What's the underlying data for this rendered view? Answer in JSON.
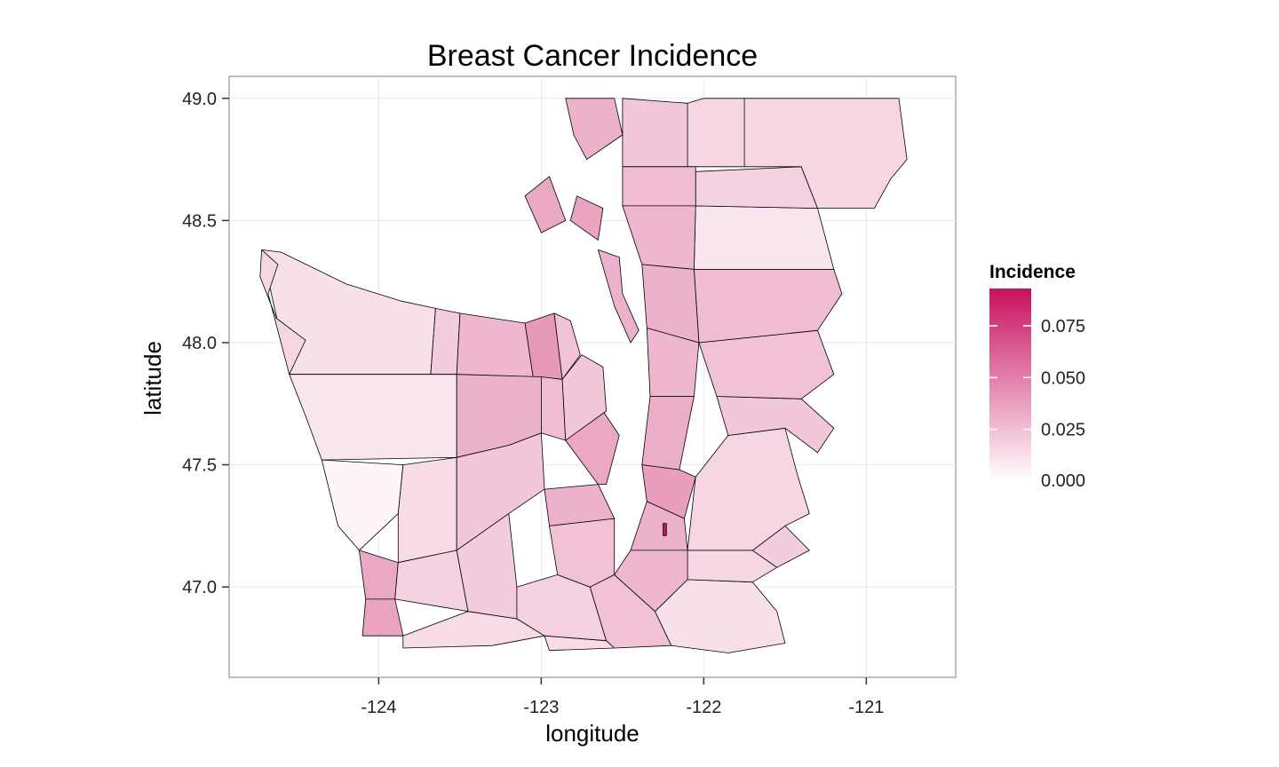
{
  "chart_data": {
    "type": "choropleth",
    "title": "Breast Cancer Incidence",
    "xlabel": "longitude",
    "ylabel": "latitude",
    "xlim": [
      -124.92,
      -120.45
    ],
    "ylim": [
      46.63,
      49.09
    ],
    "x_ticks": [
      -124,
      -123,
      -122,
      -121
    ],
    "x_tick_labels": [
      "-124",
      "-123",
      "-122",
      "-121"
    ],
    "y_ticks": [
      47.0,
      47.5,
      48.0,
      48.5,
      49.0
    ],
    "y_tick_labels": [
      "47.0",
      "47.5",
      "48.0",
      "48.5",
      "49.0"
    ],
    "grid": true,
    "legend": {
      "title": "Incidence",
      "placement": "right",
      "range": [
        0,
        0.093
      ],
      "ticks": [
        0.0,
        0.025,
        0.05,
        0.075
      ],
      "tick_labels": [
        "0.000",
        "0.025",
        "0.050",
        "0.075"
      ],
      "color_low": "#ffffff",
      "color_high": "#c8115f"
    },
    "regions": [
      {
        "v": 0.012,
        "pts": [
          [
            -123.86,
            48.17
          ],
          [
            -123.65,
            48.14
          ],
          [
            -123.68,
            47.87
          ],
          [
            -124.55,
            47.87
          ],
          [
            -124.72,
            48.38
          ],
          [
            -124.6,
            48.37
          ],
          [
            -124.2,
            48.24
          ]
        ]
      },
      {
        "v": 0.016,
        "pts": [
          [
            -124.72,
            48.38
          ],
          [
            -124.62,
            48.32
          ],
          [
            -124.68,
            48.2
          ],
          [
            -124.55,
            47.87
          ],
          [
            -124.45,
            48.01
          ],
          [
            -124.63,
            48.1
          ],
          [
            -124.73,
            48.27
          ]
        ]
      },
      {
        "v": 0.02,
        "pts": [
          [
            -123.65,
            48.14
          ],
          [
            -123.5,
            48.12
          ],
          [
            -123.52,
            47.87
          ],
          [
            -123.68,
            47.87
          ]
        ]
      },
      {
        "v": 0.028,
        "pts": [
          [
            -123.5,
            48.12
          ],
          [
            -123.1,
            48.08
          ],
          [
            -123.05,
            47.86
          ],
          [
            -123.52,
            47.87
          ]
        ]
      },
      {
        "v": 0.04,
        "pts": [
          [
            -123.1,
            48.08
          ],
          [
            -122.92,
            48.12
          ],
          [
            -122.87,
            47.85
          ],
          [
            -123.05,
            47.86
          ]
        ]
      },
      {
        "v": 0.024,
        "pts": [
          [
            -122.92,
            48.12
          ],
          [
            -122.82,
            48.09
          ],
          [
            -122.76,
            47.95
          ],
          [
            -122.87,
            47.85
          ]
        ]
      },
      {
        "v": 0.01,
        "pts": [
          [
            -124.55,
            47.87
          ],
          [
            -123.52,
            47.87
          ],
          [
            -123.52,
            47.53
          ],
          [
            -124.35,
            47.52
          ],
          [
            -124.45,
            47.7
          ]
        ]
      },
      {
        "v": 0.03,
        "pts": [
          [
            -123.52,
            47.87
          ],
          [
            -123.0,
            47.86
          ],
          [
            -123.0,
            47.63
          ],
          [
            -123.2,
            47.58
          ],
          [
            -123.52,
            47.53
          ]
        ]
      },
      {
        "v": 0.026,
        "pts": [
          [
            -123.0,
            47.86
          ],
          [
            -122.87,
            47.85
          ],
          [
            -122.85,
            47.6
          ],
          [
            -123.0,
            47.63
          ]
        ]
      },
      {
        "v": 0.004,
        "pts": [
          [
            -124.35,
            47.52
          ],
          [
            -123.85,
            47.5
          ],
          [
            -123.88,
            47.3
          ],
          [
            -124.12,
            47.15
          ],
          [
            -124.25,
            47.25
          ]
        ]
      },
      {
        "v": 0.014,
        "pts": [
          [
            -123.85,
            47.5
          ],
          [
            -123.52,
            47.53
          ],
          [
            -123.52,
            47.15
          ],
          [
            -123.88,
            47.1
          ],
          [
            -123.88,
            47.3
          ]
        ]
      },
      {
        "v": 0.022,
        "pts": [
          [
            -123.52,
            47.53
          ],
          [
            -123.2,
            47.58
          ],
          [
            -123.0,
            47.63
          ],
          [
            -122.98,
            47.4
          ],
          [
            -123.2,
            47.3
          ],
          [
            -123.52,
            47.15
          ]
        ]
      },
      {
        "v": 0.034,
        "pts": [
          [
            -124.12,
            47.15
          ],
          [
            -123.88,
            47.1
          ],
          [
            -123.9,
            46.95
          ],
          [
            -124.08,
            46.95
          ]
        ]
      },
      {
        "v": 0.018,
        "pts": [
          [
            -123.88,
            47.1
          ],
          [
            -123.52,
            47.15
          ],
          [
            -123.45,
            46.9
          ],
          [
            -123.9,
            46.95
          ]
        ]
      },
      {
        "v": 0.036,
        "pts": [
          [
            -124.08,
            46.95
          ],
          [
            -123.9,
            46.95
          ],
          [
            -123.85,
            46.8
          ],
          [
            -124.1,
            46.8
          ]
        ]
      },
      {
        "v": 0.014,
        "pts": [
          [
            -123.85,
            46.8
          ],
          [
            -123.45,
            46.9
          ],
          [
            -123.15,
            46.87
          ],
          [
            -122.98,
            46.8
          ],
          [
            -123.3,
            46.76
          ],
          [
            -123.85,
            46.75
          ]
        ]
      },
      {
        "v": 0.02,
        "pts": [
          [
            -123.45,
            46.9
          ],
          [
            -123.52,
            47.15
          ],
          [
            -123.2,
            47.3
          ],
          [
            -123.15,
            47.0
          ],
          [
            -123.15,
            46.87
          ]
        ]
      },
      {
        "v": 0.014,
        "pts": [
          [
            -122.98,
            46.8
          ],
          [
            -122.6,
            46.78
          ],
          [
            -122.55,
            46.75
          ],
          [
            -122.95,
            46.74
          ]
        ]
      },
      {
        "v": 0.018,
        "pts": [
          [
            -123.15,
            46.87
          ],
          [
            -123.15,
            47.0
          ],
          [
            -122.9,
            47.05
          ],
          [
            -122.7,
            47.0
          ],
          [
            -122.6,
            46.78
          ],
          [
            -122.98,
            46.8
          ]
        ]
      },
      {
        "v": 0.024,
        "pts": [
          [
            -122.6,
            46.78
          ],
          [
            -122.7,
            47.0
          ],
          [
            -122.55,
            47.05
          ],
          [
            -122.3,
            46.9
          ],
          [
            -122.2,
            46.76
          ],
          [
            -122.55,
            46.75
          ]
        ]
      },
      {
        "v": 0.012,
        "pts": [
          [
            -122.2,
            46.76
          ],
          [
            -122.3,
            46.9
          ],
          [
            -122.1,
            47.03
          ],
          [
            -121.7,
            47.02
          ],
          [
            -121.55,
            46.9
          ],
          [
            -121.5,
            46.77
          ],
          [
            -121.85,
            46.73
          ]
        ]
      },
      {
        "v": 0.016,
        "pts": [
          [
            -122.1,
            47.03
          ],
          [
            -122.1,
            47.15
          ],
          [
            -121.7,
            47.15
          ],
          [
            -121.55,
            47.08
          ],
          [
            -121.7,
            47.02
          ]
        ]
      },
      {
        "v": 0.02,
        "pts": [
          [
            -121.7,
            47.15
          ],
          [
            -121.5,
            47.25
          ],
          [
            -121.35,
            47.15
          ],
          [
            -121.55,
            47.08
          ]
        ]
      },
      {
        "v": 0.016,
        "pts": [
          [
            -122.05,
            47.45
          ],
          [
            -121.85,
            47.62
          ],
          [
            -121.5,
            47.65
          ],
          [
            -121.42,
            47.45
          ],
          [
            -121.35,
            47.3
          ],
          [
            -121.5,
            47.25
          ],
          [
            -121.7,
            47.15
          ],
          [
            -122.1,
            47.15
          ]
        ]
      },
      {
        "v": 0.022,
        "pts": [
          [
            -121.85,
            47.62
          ],
          [
            -121.92,
            47.78
          ],
          [
            -121.4,
            47.77
          ],
          [
            -121.2,
            47.65
          ],
          [
            -121.3,
            47.55
          ],
          [
            -121.5,
            47.65
          ]
        ]
      },
      {
        "v": 0.024,
        "pts": [
          [
            -122.03,
            48.0
          ],
          [
            -121.92,
            47.78
          ],
          [
            -121.4,
            47.77
          ],
          [
            -121.2,
            47.87
          ],
          [
            -121.3,
            48.05
          ]
        ]
      },
      {
        "v": 0.026,
        "pts": [
          [
            -122.06,
            48.3
          ],
          [
            -122.03,
            48.0
          ],
          [
            -121.3,
            48.05
          ],
          [
            -121.15,
            48.2
          ],
          [
            -121.2,
            48.3
          ]
        ]
      },
      {
        "v": 0.01,
        "pts": [
          [
            -122.05,
            48.56
          ],
          [
            -122.06,
            48.3
          ],
          [
            -121.2,
            48.3
          ],
          [
            -121.3,
            48.55
          ]
        ]
      },
      {
        "v": 0.018,
        "pts": [
          [
            -122.05,
            48.7
          ],
          [
            -122.05,
            48.56
          ],
          [
            -121.3,
            48.55
          ],
          [
            -121.4,
            48.72
          ]
        ]
      },
      {
        "v": 0.016,
        "pts": [
          [
            -121.75,
            49.0
          ],
          [
            -121.75,
            48.72
          ],
          [
            -121.4,
            48.72
          ],
          [
            -121.3,
            48.55
          ],
          [
            -120.95,
            48.55
          ],
          [
            -120.85,
            48.67
          ],
          [
            -120.75,
            48.75
          ],
          [
            -120.8,
            49.0
          ]
        ]
      },
      {
        "v": 0.016,
        "pts": [
          [
            -122.1,
            48.98
          ],
          [
            -122.1,
            48.72
          ],
          [
            -121.75,
            48.72
          ],
          [
            -121.75,
            49.0
          ],
          [
            -122.0,
            49.0
          ]
        ]
      },
      {
        "v": 0.022,
        "pts": [
          [
            -122.5,
            49.0
          ],
          [
            -122.5,
            48.72
          ],
          [
            -122.1,
            48.72
          ],
          [
            -122.1,
            48.98
          ]
        ]
      },
      {
        "v": 0.026,
        "pts": [
          [
            -122.5,
            48.72
          ],
          [
            -122.5,
            48.56
          ],
          [
            -122.05,
            48.56
          ],
          [
            -122.05,
            48.72
          ]
        ]
      },
      {
        "v": 0.028,
        "pts": [
          [
            -122.5,
            48.56
          ],
          [
            -122.38,
            48.32
          ],
          [
            -122.06,
            48.3
          ],
          [
            -122.05,
            48.56
          ]
        ]
      },
      {
        "v": 0.03,
        "pts": [
          [
            -122.38,
            48.32
          ],
          [
            -122.35,
            48.06
          ],
          [
            -122.03,
            48.0
          ],
          [
            -122.06,
            48.3
          ]
        ]
      },
      {
        "v": 0.028,
        "pts": [
          [
            -122.35,
            48.06
          ],
          [
            -122.33,
            47.78
          ],
          [
            -122.06,
            47.78
          ],
          [
            -122.03,
            48.0
          ]
        ]
      },
      {
        "v": 0.032,
        "pts": [
          [
            -122.33,
            47.78
          ],
          [
            -122.38,
            47.5
          ],
          [
            -122.15,
            47.48
          ],
          [
            -122.06,
            47.78
          ]
        ]
      },
      {
        "v": 0.038,
        "pts": [
          [
            -122.38,
            47.5
          ],
          [
            -122.35,
            47.35
          ],
          [
            -122.12,
            47.28
          ],
          [
            -122.05,
            47.45
          ],
          [
            -122.15,
            47.48
          ]
        ]
      },
      {
        "v": 0.03,
        "pts": [
          [
            -122.35,
            47.35
          ],
          [
            -122.45,
            47.15
          ],
          [
            -122.1,
            47.15
          ],
          [
            -122.12,
            47.28
          ]
        ]
      },
      {
        "v": 0.028,
        "pts": [
          [
            -122.45,
            47.15
          ],
          [
            -122.55,
            47.05
          ],
          [
            -122.3,
            46.9
          ],
          [
            -122.1,
            47.03
          ],
          [
            -122.1,
            47.15
          ]
        ]
      },
      {
        "v": 0.024,
        "pts": [
          [
            -122.95,
            47.25
          ],
          [
            -122.55,
            47.28
          ],
          [
            -122.55,
            47.05
          ],
          [
            -122.7,
            47.0
          ],
          [
            -122.9,
            47.05
          ]
        ]
      },
      {
        "v": 0.03,
        "pts": [
          [
            -122.98,
            47.4
          ],
          [
            -122.65,
            47.42
          ],
          [
            -122.55,
            47.28
          ],
          [
            -122.95,
            47.25
          ]
        ]
      },
      {
        "v": 0.034,
        "pts": [
          [
            -122.85,
            47.6
          ],
          [
            -122.62,
            47.72
          ],
          [
            -122.52,
            47.62
          ],
          [
            -122.6,
            47.42
          ],
          [
            -122.65,
            47.42
          ]
        ]
      },
      {
        "v": 0.022,
        "pts": [
          [
            -122.75,
            47.95
          ],
          [
            -122.62,
            47.9
          ],
          [
            -122.6,
            47.72
          ],
          [
            -122.85,
            47.6
          ],
          [
            -122.87,
            47.85
          ]
        ]
      },
      {
        "v": 0.03,
        "pts": [
          [
            -122.85,
            49.0
          ],
          [
            -122.55,
            49.0
          ],
          [
            -122.5,
            48.85
          ],
          [
            -122.72,
            48.75
          ],
          [
            -122.8,
            48.85
          ]
        ]
      },
      {
        "v": 0.034,
        "pts": [
          [
            -123.1,
            48.6
          ],
          [
            -123.0,
            48.45
          ],
          [
            -122.85,
            48.5
          ],
          [
            -122.95,
            48.68
          ]
        ]
      },
      {
        "v": 0.036,
        "pts": [
          [
            -122.82,
            48.5
          ],
          [
            -122.65,
            48.42
          ],
          [
            -122.62,
            48.55
          ],
          [
            -122.78,
            48.6
          ]
        ]
      },
      {
        "v": 0.03,
        "pts": [
          [
            -122.65,
            48.38
          ],
          [
            -122.55,
            48.15
          ],
          [
            -122.45,
            48.0
          ],
          [
            -122.4,
            48.05
          ],
          [
            -122.5,
            48.2
          ],
          [
            -122.52,
            48.35
          ]
        ]
      },
      {
        "v": 0.093,
        "pts": [
          [
            -122.25,
            47.26
          ],
          [
            -122.23,
            47.26
          ],
          [
            -122.23,
            47.21
          ],
          [
            -122.25,
            47.21
          ]
        ]
      }
    ]
  }
}
